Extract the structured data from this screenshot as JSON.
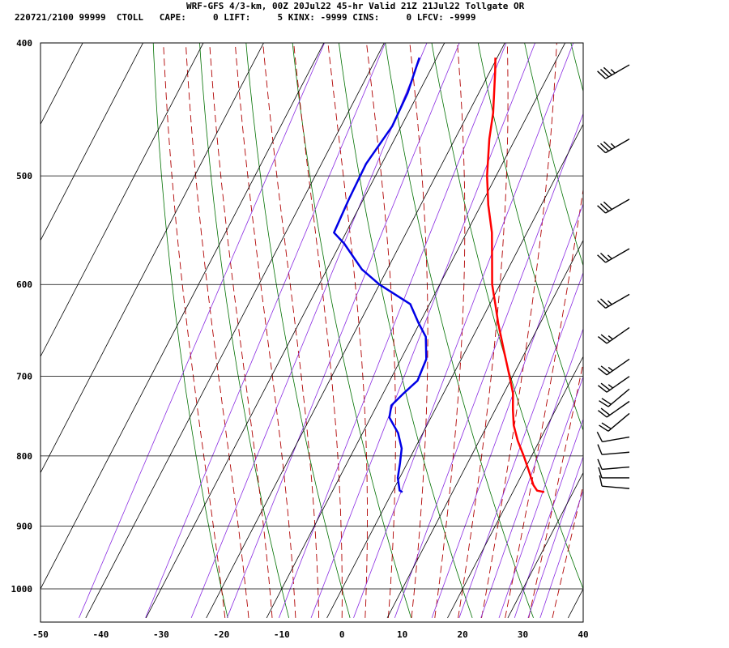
{
  "header": {
    "title": "WRF-GFS 4/3-km, 00Z 20Jul22 45-hr Valid 21Z 21Jul22 Tollgate OR",
    "stats": "220721/2100 99999  CTOLL   CAPE:     0 LIFT:     5 KINX: -9999 CINS:     0 LFCV: -9999"
  },
  "chart_data": {
    "type": "line",
    "title": "WRF-GFS 4/3-km, 00Z 20Jul22 45-hr Valid 21Z 21Jul22 Tollgate OR",
    "xlabel": "",
    "ylabel": "",
    "xlim": [
      -50,
      40
    ],
    "ylim": [
      1050,
      400
    ],
    "y_scale": "log",
    "grid": true,
    "x_ticks": [
      -50,
      -40,
      -30,
      -20,
      -10,
      0,
      10,
      20,
      30,
      40
    ],
    "y_ticks": [
      400,
      500,
      600,
      700,
      800,
      900,
      1000
    ],
    "series": [
      {
        "color": "#ff0000",
        "points": [
          {
            "p": 850,
            "t": 25.2
          },
          {
            "p": 848,
            "t": 23.9
          },
          {
            "p": 840,
            "t": 22.8
          },
          {
            "p": 820,
            "t": 20.8
          },
          {
            "p": 800,
            "t": 18.7
          },
          {
            "p": 780,
            "t": 16.4
          },
          {
            "p": 760,
            "t": 14.4
          },
          {
            "p": 740,
            "t": 12.9
          },
          {
            "p": 720,
            "t": 11.5
          },
          {
            "p": 700,
            "t": 9.5
          },
          {
            "p": 670,
            "t": 6.3
          },
          {
            "p": 640,
            "t": 3.0
          },
          {
            "p": 620,
            "t": 0.9
          },
          {
            "p": 600,
            "t": -1.3
          },
          {
            "p": 575,
            "t": -3.5
          },
          {
            "p": 550,
            "t": -5.8
          },
          {
            "p": 525,
            "t": -8.8
          },
          {
            "p": 500,
            "t": -11.5
          },
          {
            "p": 470,
            "t": -14.3
          },
          {
            "p": 450,
            "t": -15.9
          },
          {
            "p": 420,
            "t": -19.1
          },
          {
            "p": 410,
            "t": -20.3
          }
        ]
      },
      {
        "color": "#0000e6",
        "points": [
          {
            "p": 850,
            "t": 1.7
          },
          {
            "p": 848,
            "t": 1.1
          },
          {
            "p": 830,
            "t": -0.3
          },
          {
            "p": 810,
            "t": -1.2
          },
          {
            "p": 790,
            "t": -2.2
          },
          {
            "p": 770,
            "t": -4.1
          },
          {
            "p": 750,
            "t": -6.9
          },
          {
            "p": 735,
            "t": -7.6
          },
          {
            "p": 720,
            "t": -6.6
          },
          {
            "p": 705,
            "t": -5.4
          },
          {
            "p": 680,
            "t": -5.8
          },
          {
            "p": 655,
            "t": -7.8
          },
          {
            "p": 640,
            "t": -10.2
          },
          {
            "p": 620,
            "t": -13.2
          },
          {
            "p": 600,
            "t": -20.0
          },
          {
            "p": 585,
            "t": -24.2
          },
          {
            "p": 560,
            "t": -29.4
          },
          {
            "p": 550,
            "t": -32.0
          },
          {
            "p": 520,
            "t": -32.4
          },
          {
            "p": 490,
            "t": -32.6
          },
          {
            "p": 460,
            "t": -31.5
          },
          {
            "p": 435,
            "t": -31.8
          },
          {
            "p": 410,
            "t": -32.9
          }
        ]
      }
    ],
    "wind_barbs": [
      {
        "p": 415,
        "dir": 240,
        "spd": 35
      },
      {
        "p": 470,
        "dir": 240,
        "spd": 35
      },
      {
        "p": 520,
        "dir": 240,
        "spd": 30
      },
      {
        "p": 565,
        "dir": 240,
        "spd": 25
      },
      {
        "p": 610,
        "dir": 240,
        "spd": 25
      },
      {
        "p": 645,
        "dir": 235,
        "spd": 25
      },
      {
        "p": 680,
        "dir": 235,
        "spd": 25
      },
      {
        "p": 700,
        "dir": 235,
        "spd": 25
      },
      {
        "p": 715,
        "dir": 230,
        "spd": 20
      },
      {
        "p": 730,
        "dir": 235,
        "spd": 20
      },
      {
        "p": 745,
        "dir": 230,
        "spd": 20
      },
      {
        "p": 775,
        "dir": 260,
        "spd": 10
      },
      {
        "p": 795,
        "dir": 265,
        "spd": 10
      },
      {
        "p": 815,
        "dir": 265,
        "spd": 10
      },
      {
        "p": 830,
        "dir": 270,
        "spd": 10
      },
      {
        "p": 845,
        "dir": 275,
        "spd": 10
      }
    ],
    "colors": {
      "isotherm": "#000000",
      "isobar": "#000000",
      "dry_adiabat": "#007000",
      "moist_adiabat": "#b00000",
      "mixing_ratio": "#8a2be2",
      "temperature": "#ff0000",
      "dewpoint": "#0000e6",
      "barb": "#000000"
    }
  }
}
